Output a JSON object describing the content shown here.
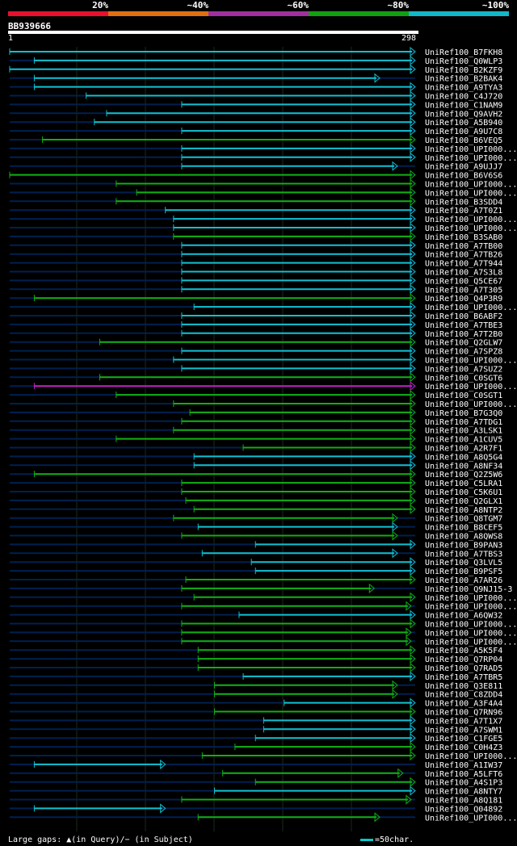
{
  "legend": {
    "labels": [
      "20%",
      "~40%",
      "~60%",
      "~80%",
      "~100%"
    ],
    "colors": [
      "#e8102c",
      "#e07010",
      "#a030a0",
      "#10a010",
      "#10b8c8"
    ]
  },
  "query": {
    "id": "BB939666",
    "start": "1",
    "end": "298"
  },
  "colors": {
    "cyan": "#10c0d0",
    "green": "#10b010",
    "magenta": "#c020c0",
    "track": "#002050",
    "grid": "#234"
  },
  "hits": [
    {
      "label": "UniRef100_B7FKH8",
      "start": 1,
      "end": 298,
      "color": "cyan"
    },
    {
      "label": "UniRef100_Q0WLP3",
      "start": 19,
      "end": 298,
      "color": "cyan"
    },
    {
      "label": "UniRef100_B2KZF9",
      "start": 1,
      "end": 298,
      "color": "cyan"
    },
    {
      "label": "UniRef100_B2BAK4",
      "start": 19,
      "end": 272,
      "color": "cyan"
    },
    {
      "label": "UniRef100_A9TYA3",
      "start": 19,
      "end": 298,
      "color": "cyan"
    },
    {
      "label": "UniRef100_C4J720",
      "start": 57,
      "end": 298,
      "color": "cyan"
    },
    {
      "label": "UniRef100_C1NAM9",
      "start": 127,
      "end": 298,
      "color": "cyan"
    },
    {
      "label": "UniRef100_Q9AVH2",
      "start": 72,
      "end": 298,
      "color": "cyan"
    },
    {
      "label": "UniRef100_A5B940",
      "start": 63,
      "end": 298,
      "color": "cyan"
    },
    {
      "label": "UniRef100_A9U7C8",
      "start": 127,
      "end": 298,
      "color": "cyan"
    },
    {
      "label": "UniRef100_B6VEQ5",
      "start": 25,
      "end": 298,
      "color": "green"
    },
    {
      "label": "UniRef100_UPI000...",
      "start": 127,
      "end": 298,
      "color": "cyan"
    },
    {
      "label": "UniRef100_UPI000...",
      "start": 127,
      "end": 298,
      "color": "cyan"
    },
    {
      "label": "UniRef100_A9UJJ7",
      "start": 127,
      "end": 285,
      "color": "cyan"
    },
    {
      "label": "UniRef100_B6V6S6",
      "start": 1,
      "end": 298,
      "color": "green"
    },
    {
      "label": "UniRef100_UPI000...",
      "start": 79,
      "end": 298,
      "color": "green"
    },
    {
      "label": "UniRef100_UPI000...",
      "start": 94,
      "end": 298,
      "color": "green"
    },
    {
      "label": "UniRef100_B3SDD4",
      "start": 79,
      "end": 298,
      "color": "green"
    },
    {
      "label": "UniRef100_A7T0Z1",
      "start": 115,
      "end": 298,
      "color": "cyan"
    },
    {
      "label": "UniRef100_UPI000...",
      "start": 121,
      "end": 298,
      "color": "cyan"
    },
    {
      "label": "UniRef100_UPI000...",
      "start": 121,
      "end": 298,
      "color": "cyan"
    },
    {
      "label": "UniRef100_B3SAB0",
      "start": 121,
      "end": 298,
      "color": "green"
    },
    {
      "label": "UniRef100_A7TB00",
      "start": 127,
      "end": 298,
      "color": "cyan"
    },
    {
      "label": "UniRef100_A7TB26",
      "start": 127,
      "end": 298,
      "color": "cyan"
    },
    {
      "label": "UniRef100_A7T944",
      "start": 127,
      "end": 298,
      "color": "cyan"
    },
    {
      "label": "UniRef100_A7S3L8",
      "start": 127,
      "end": 298,
      "color": "cyan"
    },
    {
      "label": "UniRef100_Q5CE67",
      "start": 127,
      "end": 298,
      "color": "cyan"
    },
    {
      "label": "UniRef100_A7T305",
      "start": 127,
      "end": 298,
      "color": "cyan"
    },
    {
      "label": "UniRef100_Q4P3R9",
      "start": 19,
      "end": 298,
      "color": "green"
    },
    {
      "label": "UniRef100_UPI000...",
      "start": 136,
      "end": 298,
      "color": "cyan"
    },
    {
      "label": "UniRef100_B6ABF2",
      "start": 127,
      "end": 298,
      "color": "cyan"
    },
    {
      "label": "UniRef100_A7TBE3",
      "start": 127,
      "end": 298,
      "color": "cyan"
    },
    {
      "label": "UniRef100_A7T2B0",
      "start": 127,
      "end": 298,
      "color": "cyan"
    },
    {
      "label": "UniRef100_Q2GLW7",
      "start": 67,
      "end": 298,
      "color": "green"
    },
    {
      "label": "UniRef100_A7SPZ8",
      "start": 127,
      "end": 298,
      "color": "cyan"
    },
    {
      "label": "UniRef100_UPI000...",
      "start": 121,
      "end": 298,
      "color": "cyan"
    },
    {
      "label": "UniRef100_A7SUZ2",
      "start": 127,
      "end": 298,
      "color": "cyan"
    },
    {
      "label": "UniRef100_C0SGT6",
      "start": 67,
      "end": 298,
      "color": "green"
    },
    {
      "label": "UniRef100_UPI000...",
      "start": 19,
      "end": 298,
      "color": "magenta"
    },
    {
      "label": "UniRef100_C0SGT1",
      "start": 79,
      "end": 298,
      "color": "green"
    },
    {
      "label": "UniRef100_UPI000...",
      "start": 121,
      "end": 298,
      "color": "green"
    },
    {
      "label": "UniRef100_B7G3Q0",
      "start": 133,
      "end": 298,
      "color": "green"
    },
    {
      "label": "UniRef100_A7TDG1",
      "start": 127,
      "end": 298,
      "color": "green"
    },
    {
      "label": "UniRef100_A3LSK1",
      "start": 121,
      "end": 298,
      "color": "green"
    },
    {
      "label": "UniRef100_A1CUV5",
      "start": 79,
      "end": 298,
      "color": "green"
    },
    {
      "label": "UniRef100_A2R7F1",
      "start": 172,
      "end": 298,
      "color": "green"
    },
    {
      "label": "UniRef100_A8Q5G4",
      "start": 136,
      "end": 298,
      "color": "cyan"
    },
    {
      "label": "UniRef100_A8NF34",
      "start": 136,
      "end": 298,
      "color": "cyan"
    },
    {
      "label": "UniRef100_Q2Z5W6",
      "start": 19,
      "end": 298,
      "color": "green"
    },
    {
      "label": "UniRef100_C5LRA1",
      "start": 127,
      "end": 298,
      "color": "green"
    },
    {
      "label": "UniRef100_C5K6U1",
      "start": 127,
      "end": 298,
      "color": "green"
    },
    {
      "label": "UniRef100_Q2GLX1",
      "start": 130,
      "end": 298,
      "color": "green"
    },
    {
      "label": "UniRef100_A8NTP2",
      "start": 136,
      "end": 298,
      "color": "green"
    },
    {
      "label": "UniRef100_Q8TGM7",
      "start": 121,
      "end": 285,
      "color": "green"
    },
    {
      "label": "UniRef100_B8CEF5",
      "start": 139,
      "end": 285,
      "color": "cyan"
    },
    {
      "label": "UniRef100_A8QWS8",
      "start": 127,
      "end": 285,
      "color": "green"
    },
    {
      "label": "UniRef100_B9PAN3",
      "start": 181,
      "end": 298,
      "color": "cyan"
    },
    {
      "label": "UniRef100_A7TBS3",
      "start": 142,
      "end": 285,
      "color": "cyan"
    },
    {
      "label": "UniRef100_Q3LVL5",
      "start": 178,
      "end": 298,
      "color": "cyan"
    },
    {
      "label": "UniRef100_B9PSF5",
      "start": 181,
      "end": 298,
      "color": "cyan"
    },
    {
      "label": "UniRef100_A7AR26",
      "start": 130,
      "end": 298,
      "color": "green"
    },
    {
      "label": "UniRef100_Q9NJ15-3",
      "start": 127,
      "end": 268,
      "color": "green"
    },
    {
      "label": "UniRef100_UPI000...",
      "start": 136,
      "end": 298,
      "color": "green"
    },
    {
      "label": "UniRef100_UPI000...",
      "start": 127,
      "end": 295,
      "color": "green"
    },
    {
      "label": "UniRef100_A6QW32",
      "start": 169,
      "end": 298,
      "color": "cyan"
    },
    {
      "label": "UniRef100_UPI000...",
      "start": 127,
      "end": 298,
      "color": "green"
    },
    {
      "label": "UniRef100_UPI000...",
      "start": 127,
      "end": 295,
      "color": "green"
    },
    {
      "label": "UniRef100_UPI000...",
      "start": 127,
      "end": 295,
      "color": "green"
    },
    {
      "label": "UniRef100_A5K5F4",
      "start": 139,
      "end": 298,
      "color": "green"
    },
    {
      "label": "UniRef100_Q7RP04",
      "start": 139,
      "end": 298,
      "color": "green"
    },
    {
      "label": "UniRef100_Q7RAD5",
      "start": 139,
      "end": 298,
      "color": "green"
    },
    {
      "label": "UniRef100_A7TBR5",
      "start": 172,
      "end": 298,
      "color": "cyan"
    },
    {
      "label": "UniRef100_Q3E811",
      "start": 151,
      "end": 285,
      "color": "green"
    },
    {
      "label": "UniRef100_C8ZDD4",
      "start": 151,
      "end": 285,
      "color": "green"
    },
    {
      "label": "UniRef100_A3F4A4",
      "start": 202,
      "end": 298,
      "color": "cyan"
    },
    {
      "label": "UniRef100_Q7RN96",
      "start": 151,
      "end": 298,
      "color": "green"
    },
    {
      "label": "UniRef100_A7T1X7",
      "start": 187,
      "end": 298,
      "color": "cyan"
    },
    {
      "label": "UniRef100_A7SWM1",
      "start": 187,
      "end": 298,
      "color": "cyan"
    },
    {
      "label": "UniRef100_C1FGE5",
      "start": 181,
      "end": 298,
      "color": "cyan"
    },
    {
      "label": "UniRef100_C0H4Z3",
      "start": 166,
      "end": 298,
      "color": "green"
    },
    {
      "label": "UniRef100_UPI000...",
      "start": 142,
      "end": 298,
      "color": "green"
    },
    {
      "label": "UniRef100_A1IW37",
      "start": 19,
      "end": 115,
      "color": "cyan"
    },
    {
      "label": "UniRef100_A5LFT6",
      "start": 157,
      "end": 289,
      "color": "green"
    },
    {
      "label": "UniRef100_A4S1P3",
      "start": 181,
      "end": 298,
      "color": "green"
    },
    {
      "label": "UniRef100_A8NTY7",
      "start": 151,
      "end": 298,
      "color": "cyan"
    },
    {
      "label": "UniRef100_A8Q181",
      "start": 127,
      "end": 295,
      "color": "green"
    },
    {
      "label": "UniRef100_Q04892",
      "start": 19,
      "end": 115,
      "color": "cyan"
    },
    {
      "label": "UniRef100_UPI000...",
      "start": 139,
      "end": 272,
      "color": "green"
    }
  ],
  "footer": {
    "gaps_text": "Large gaps: ▲(in Query)/− (in Subject)",
    "scale_text": "=50char."
  }
}
